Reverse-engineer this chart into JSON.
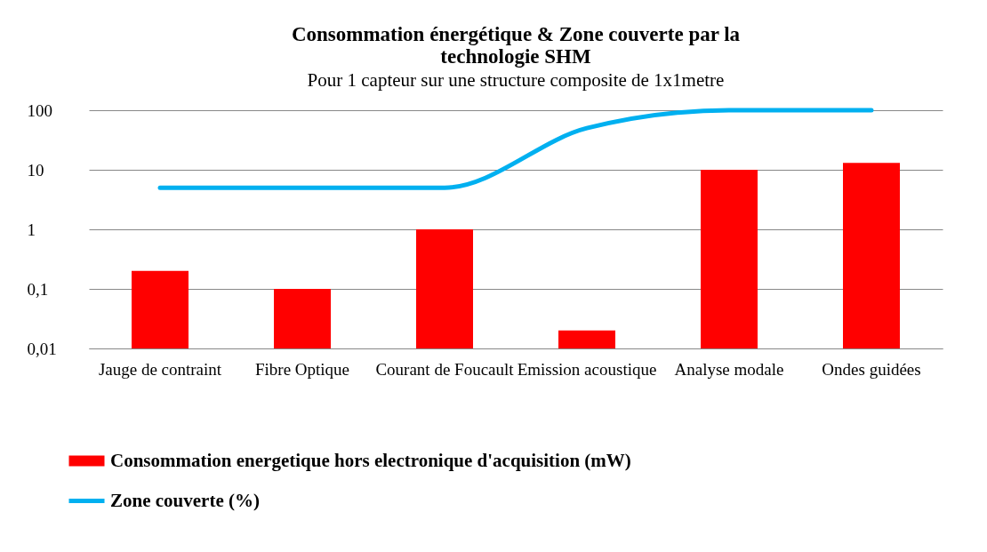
{
  "chart_data": {
    "type": "bar",
    "title": "Consommation énergétique & Zone couverte par la\ntechnologie SHM",
    "subtitle": "Pour 1 capteur sur une structure composite de 1x1metre",
    "categories": [
      "Jauge  de\ncontraint",
      "Fibre\nOptique",
      "Courant de\nFoucault",
      "Emission\nacoustique",
      "Analyse\nmodale",
      "Ondes\nguidées"
    ],
    "series": [
      {
        "name": "Consommation energetique hors electronique d'acquisition (mW)",
        "color": "#ff0000",
        "values": [
          0.2,
          0.1,
          1,
          0.02,
          10,
          13
        ]
      },
      {
        "name": "Zone couverte (%)",
        "type": "line",
        "color": "#00b0f0",
        "values": [
          5,
          5,
          5,
          50,
          100,
          100
        ]
      }
    ],
    "log": true,
    "ylim": [
      0.01,
      100
    ],
    "yticks": [
      {
        "value": 0.01,
        "label": "0,01"
      },
      {
        "value": 0.1,
        "label": "0,1"
      },
      1,
      10,
      100
    ],
    "grid": "y",
    "legend": "bottom left"
  }
}
